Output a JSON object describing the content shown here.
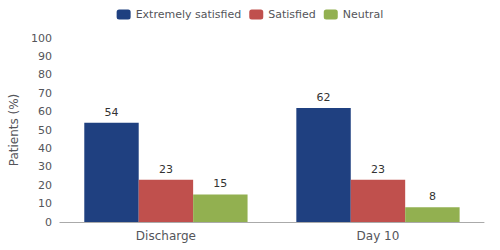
{
  "chart_data": {
    "type": "bar",
    "categories": [
      "Discharge",
      "Day 10"
    ],
    "series": [
      {
        "name": "Extremely satisfied",
        "color": "#1f4080",
        "values": [
          54,
          62
        ]
      },
      {
        "name": "Satisfied",
        "color": "#c0504d",
        "values": [
          23,
          23
        ]
      },
      {
        "name": "Neutral",
        "color": "#92b050",
        "values": [
          15,
          8
        ]
      }
    ],
    "ylabel": "Patients (%)",
    "ylim": [
      0,
      100
    ],
    "yticks": [
      0,
      10,
      20,
      30,
      40,
      50,
      60,
      70,
      80,
      90,
      100
    ],
    "data_labels": true,
    "grid": false,
    "legend": "top"
  }
}
